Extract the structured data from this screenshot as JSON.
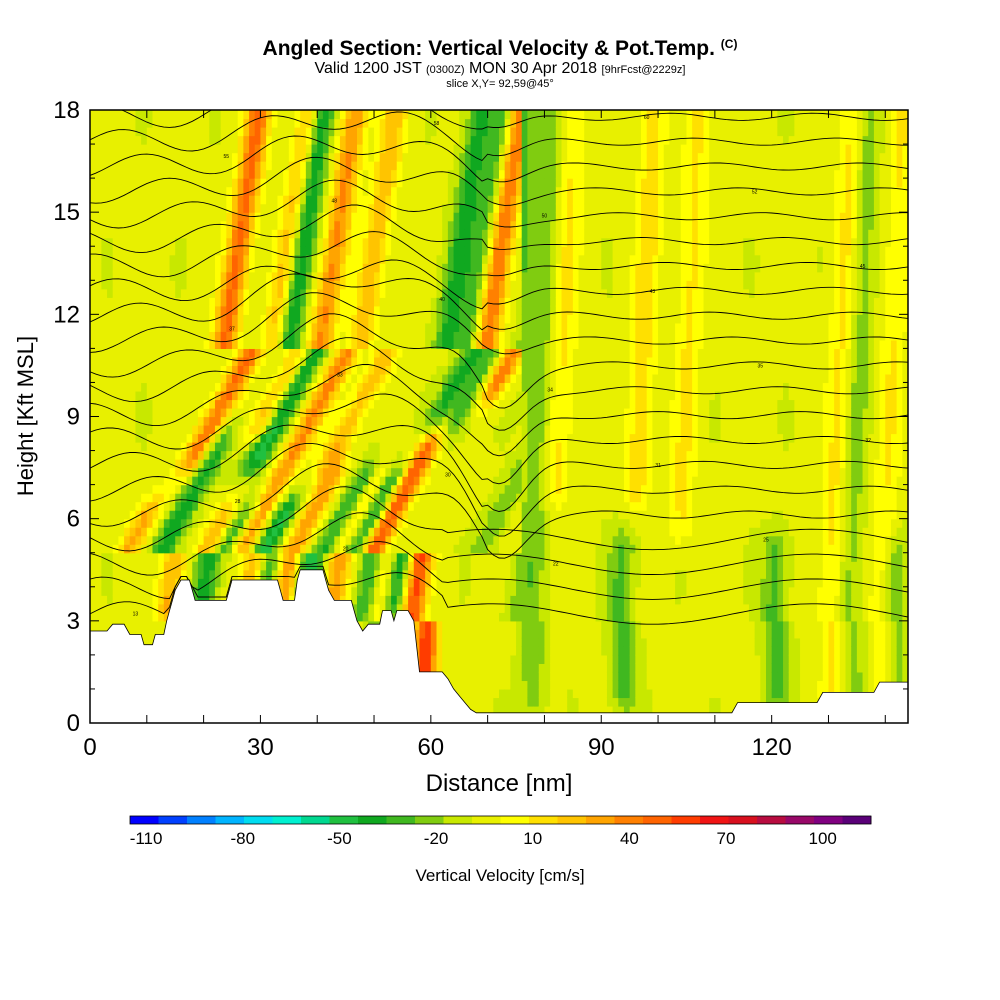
{
  "title": {
    "main": "Angled Section: Vertical Velocity & Pot.Temp.",
    "main_suffix": "(C)",
    "valid_prefix": "Valid 1200 JST",
    "valid_z": "(0300Z)",
    "valid_date": "MON 30 Apr 2018",
    "valid_fcst": "[9hrFcst@2229z]",
    "slice": "slice X,Y= 92,59@45°"
  },
  "colors": {
    "colorbar": [
      "#0000ff",
      "#0040ff",
      "#0080ff",
      "#00b4ff",
      "#00dcf0",
      "#00f0d0",
      "#00d890",
      "#20c040",
      "#10a820",
      "#40b820",
      "#80cc10",
      "#c8e800",
      "#e8f000",
      "#ffff00",
      "#ffe000",
      "#ffc400",
      "#ffa400",
      "#ff8000",
      "#ff6400",
      "#ff3c00",
      "#f01414",
      "#d8101e",
      "#b80c40",
      "#980868",
      "#800080",
      "#5a0078"
    ],
    "contour": "#000000",
    "terrain": "#ffffff"
  },
  "chart_data": {
    "type": "heatmap",
    "xlabel": "Distance [nm]",
    "ylabel": "Height [Kft MSL]",
    "xlim": [
      0,
      144
    ],
    "ylim": [
      0,
      18
    ],
    "xticks": [
      0,
      30,
      60,
      90,
      120
    ],
    "yticks": [
      0,
      3,
      6,
      9,
      12,
      15,
      18
    ],
    "colorbar": {
      "label": "Vertical Velocity [cm/s]",
      "tick_labels": [
        "-110",
        "-80",
        "-50",
        "-20",
        "10",
        "40",
        "70",
        "100"
      ],
      "min": -115,
      "max": 115,
      "step": 10
    },
    "updrafts": [
      {
        "x": 19,
        "z_bottom": 8,
        "z_top": 18,
        "peak": 60
      },
      {
        "x": 28,
        "z_bottom": 9,
        "z_top": 18,
        "peak": 45
      },
      {
        "x": 36,
        "z_bottom": 3.5,
        "z_top": 18,
        "peak": 50
      },
      {
        "x": 45,
        "z_bottom": 3.5,
        "z_top": 7,
        "peak": 45
      },
      {
        "x": 53,
        "z_bottom": 3.5,
        "z_top": 7,
        "peak": 40
      },
      {
        "x": 59,
        "z_bottom": 1.5,
        "z_top": 8,
        "peak": 75
      },
      {
        "x": 65,
        "z_bottom": 10,
        "z_top": 18,
        "peak": 60
      },
      {
        "x": 16,
        "z_bottom": 3.5,
        "z_top": 6,
        "peak": 40
      },
      {
        "x": 30,
        "z_bottom": 4,
        "z_top": 6,
        "peak": 40
      },
      {
        "x": 43,
        "z_bottom": 8,
        "z_top": 18,
        "peak": 35
      },
      {
        "x": 82,
        "z_bottom": 7,
        "z_top": 18,
        "peak": 20
      },
      {
        "x": 96,
        "z_bottom": 7,
        "z_top": 18,
        "peak": 25
      },
      {
        "x": 104,
        "z_bottom": 6,
        "z_top": 18,
        "peak": 20
      },
      {
        "x": 131,
        "z_bottom": 1,
        "z_top": 18,
        "peak": 22
      },
      {
        "x": 140,
        "z_bottom": 1,
        "z_top": 18,
        "peak": 18
      }
    ],
    "downdrafts": [
      {
        "x": 22,
        "z_bottom": 3.5,
        "z_top": 8,
        "peak": -40
      },
      {
        "x": 30,
        "z_bottom": 8,
        "z_top": 18,
        "peak": -55
      },
      {
        "x": 33,
        "z_bottom": 3.5,
        "z_top": 6,
        "peak": -40
      },
      {
        "x": 40,
        "z_bottom": 4,
        "z_top": 6,
        "peak": -50
      },
      {
        "x": 51,
        "z_bottom": 3.5,
        "z_top": 7,
        "peak": -45
      },
      {
        "x": 56,
        "z_bottom": 3.5,
        "z_top": 7,
        "peak": -50
      },
      {
        "x": 58,
        "z_bottom": 9,
        "z_top": 18,
        "peak": -35
      },
      {
        "x": 62,
        "z_bottom": 9,
        "z_top": 18,
        "peak": -30
      },
      {
        "x": 73,
        "z_bottom": 10,
        "z_top": 18,
        "peak": -30
      },
      {
        "x": 78,
        "z_bottom": 1,
        "z_top": 18,
        "peak": -20
      },
      {
        "x": 94,
        "z_bottom": 1,
        "z_top": 5,
        "peak": -25
      },
      {
        "x": 121,
        "z_bottom": 1,
        "z_top": 5,
        "peak": -25
      },
      {
        "x": 134,
        "z_bottom": 1,
        "z_top": 18,
        "peak": -18
      },
      {
        "x": 142,
        "z_bottom": 1,
        "z_top": 5,
        "peak": -20
      }
    ],
    "terrain_profile": [
      [
        0,
        2.7
      ],
      [
        3,
        2.7
      ],
      [
        4,
        2.9
      ],
      [
        6,
        2.9
      ],
      [
        7,
        2.6
      ],
      [
        9,
        2.6
      ],
      [
        9.5,
        2.3
      ],
      [
        11,
        2.3
      ],
      [
        11.5,
        2.6
      ],
      [
        13,
        2.6
      ],
      [
        13.5,
        3.0
      ],
      [
        14,
        3.3
      ],
      [
        14.5,
        3.6
      ],
      [
        15,
        3.9
      ],
      [
        16,
        4.2
      ],
      [
        17.5,
        4.2
      ],
      [
        18,
        3.9
      ],
      [
        18.5,
        3.6
      ],
      [
        24,
        3.6
      ],
      [
        24.5,
        3.9
      ],
      [
        25,
        4.2
      ],
      [
        33,
        4.2
      ],
      [
        33.5,
        3.9
      ],
      [
        34,
        3.6
      ],
      [
        36,
        3.6
      ],
      [
        36.5,
        4.2
      ],
      [
        37,
        4.5
      ],
      [
        41,
        4.5
      ],
      [
        41.5,
        4.2
      ],
      [
        42,
        3.9
      ],
      [
        43,
        3.6
      ],
      [
        46,
        3.6
      ],
      [
        46.5,
        3.3
      ],
      [
        47,
        3.0
      ],
      [
        48,
        2.7
      ],
      [
        49,
        2.9
      ],
      [
        51,
        2.9
      ],
      [
        51.5,
        3.3
      ],
      [
        53,
        3.3
      ],
      [
        53.5,
        3.0
      ],
      [
        54,
        3.3
      ],
      [
        56,
        3.3
      ],
      [
        57,
        3.0
      ],
      [
        58,
        1.5
      ],
      [
        62,
        1.5
      ],
      [
        63,
        1.3
      ],
      [
        64,
        1.0
      ],
      [
        65,
        0.8
      ],
      [
        66,
        0.6
      ],
      [
        67,
        0.4
      ],
      [
        68,
        0.3
      ],
      [
        113,
        0.3
      ],
      [
        114,
        0.6
      ],
      [
        128,
        0.6
      ],
      [
        129,
        0.9
      ],
      [
        138,
        0.9
      ],
      [
        139,
        1.2
      ],
      [
        144,
        1.2
      ]
    ],
    "theta_isentropes": {
      "count": 21,
      "labels": [
        "13",
        "20",
        "22",
        "25",
        "28",
        "30",
        "31",
        "32",
        "33",
        "34",
        "35",
        "37",
        "40",
        "43",
        "45",
        "48",
        "50",
        "52",
        "55",
        "58",
        "60"
      ]
    }
  }
}
